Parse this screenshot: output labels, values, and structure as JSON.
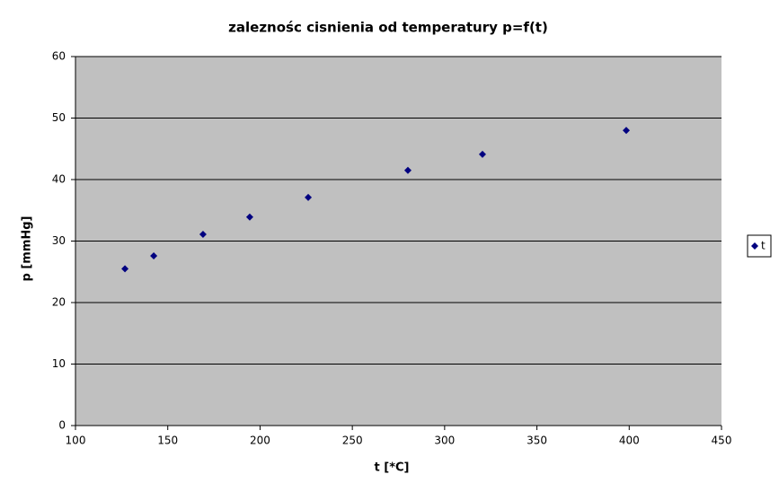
{
  "chart_data": {
    "type": "scatter",
    "title": "zaleznośc cisnienia od temperatury p=f(t)",
    "x_label": "t [*C]",
    "y_label": "p [mmHg]",
    "series": [
      {
        "name": "t",
        "color": "#000080",
        "x": [
          126.8,
          142.4,
          169.1,
          194.4,
          226.1,
          280.1,
          320.5,
          398.4
        ],
        "values": [
          25.5,
          27.6,
          31.1,
          33.9,
          37.1,
          41.5,
          44.1,
          48.0
        ]
      }
    ],
    "xlim": [
      100,
      450
    ],
    "xticks": [
      100,
      150,
      200,
      250,
      300,
      350,
      400,
      450
    ],
    "ylim": [
      0,
      60
    ],
    "yticks": [
      0,
      10,
      20,
      30,
      40,
      50,
      60
    ],
    "grid": true,
    "legend": "right",
    "plot_background": "#c0c0c0"
  }
}
